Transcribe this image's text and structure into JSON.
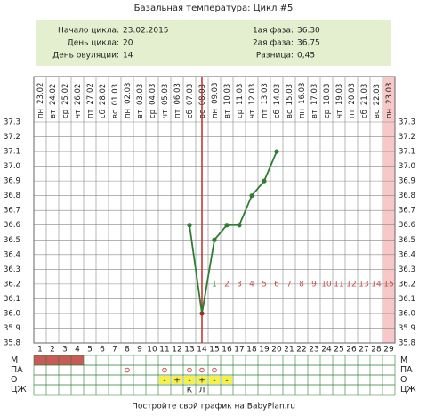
{
  "title": "Базальная температура: Цикл #5",
  "info": [
    {
      "label": "Начало цикла:",
      "value": "23.02.2015"
    },
    {
      "label": "День цикла:",
      "value": "20"
    },
    {
      "label": "День овуляции:",
      "value": "14"
    },
    {
      "label": "1ая фаза:",
      "value": "36.30"
    },
    {
      "label": "2ая фаза:",
      "value": "36.75"
    },
    {
      "label": "Разница:",
      "value": "0,45"
    }
  ],
  "chart_data": {
    "type": "line",
    "weekdays": [
      "пн",
      "вт",
      "ср",
      "чт",
      "пт",
      "сб",
      "вс",
      "пн",
      "вт",
      "ср",
      "чт",
      "пт",
      "сб",
      "вс",
      "пн",
      "вт",
      "ср",
      "чт",
      "пт",
      "сб",
      "вс",
      "пн",
      "вт",
      "ср",
      "чт",
      "пт",
      "сб",
      "вс",
      "пн"
    ],
    "categories": [
      "23.02",
      "24.02",
      "25.02",
      "26.02",
      "27.02",
      "28.02",
      "01.03",
      "02.03",
      "03.03",
      "04.03",
      "05.03",
      "06.03",
      "07.03",
      "08.03",
      "09.03",
      "10.03",
      "11.03",
      "12.03",
      "13.03",
      "14.03",
      "15.03",
      "16.03",
      "17.03",
      "18.03",
      "19.03",
      "20.03",
      "21.03",
      "22.03",
      "23.03"
    ],
    "days": [
      1,
      2,
      3,
      4,
      5,
      6,
      7,
      8,
      9,
      10,
      11,
      12,
      13,
      14,
      15,
      16,
      17,
      18,
      19,
      20,
      21,
      22,
      23,
      24,
      25,
      26,
      27,
      28,
      29
    ],
    "ylim": [
      35.8,
      37.3
    ],
    "yticks": [
      35.8,
      35.9,
      {
        "value": 36,
        "label": "36.0"
      },
      36.1,
      36.2,
      36.3,
      36.4,
      36.5,
      36.6,
      36.7,
      36.8,
      36.9,
      {
        "value": 37,
        "label": "37.0"
      },
      37.1,
      37.2,
      37.3
    ],
    "series": [
      {
        "color": "#2e7d32",
        "values": [
          null,
          null,
          null,
          null,
          null,
          null,
          null,
          null,
          null,
          null,
          null,
          null,
          36.6,
          36.0,
          36.5,
          36.6,
          36.6,
          36.8,
          36.9,
          37.1,
          null,
          null,
          null,
          null,
          null,
          null,
          null,
          null,
          null
        ]
      }
    ],
    "ovulation_day": 14,
    "highlight_day": 29,
    "post_ovulation_labels": [
      1,
      2,
      3,
      4,
      5,
      6,
      7,
      8,
      9,
      10,
      11,
      12,
      13,
      14,
      15
    ],
    "rows": [
      {
        "label": "М",
        "filled_days": [
          1,
          2,
          3,
          4
        ]
      },
      {
        "label": "ПА",
        "circle_days": [
          8,
          11,
          13,
          14,
          15
        ]
      },
      {
        "label": "О",
        "cells": [
          null,
          null,
          null,
          null,
          null,
          null,
          null,
          null,
          null,
          null,
          "-",
          "+",
          "-",
          "+",
          "-",
          "-",
          null,
          null,
          null,
          null,
          null,
          null,
          null,
          null,
          null,
          null,
          null,
          null,
          null
        ]
      },
      {
        "label": "ЦЖ",
        "cells": [
          null,
          null,
          null,
          null,
          null,
          null,
          null,
          null,
          null,
          null,
          null,
          null,
          "К",
          "Л",
          null,
          null,
          null,
          null,
          null,
          null,
          null,
          null,
          null,
          null,
          null,
          null,
          null,
          null,
          null
        ]
      }
    ]
  },
  "footer": "Постройте свой график на BabyPlan.ru"
}
